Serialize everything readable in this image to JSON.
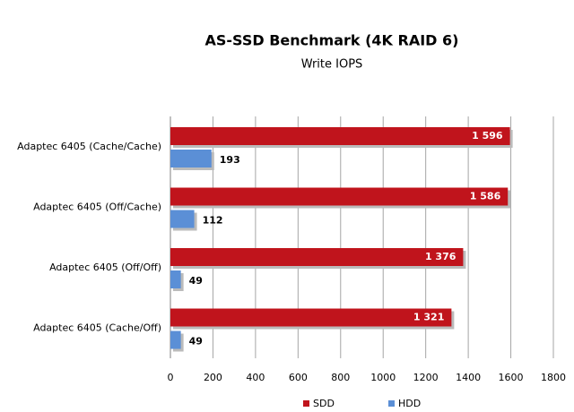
{
  "chart_data": {
    "type": "hbar",
    "title": "AS-SSD Benchmark (4K RAID 6)",
    "subtitle": "Write IOPS",
    "categories": [
      "Adaptec 6405 (Cache/Cache)",
      "Adaptec 6405 (Off/Cache)",
      "Adaptec 6405 (Off/Off)",
      "Adaptec 6405 (Cache/Off)"
    ],
    "series": [
      {
        "name": "SDD",
        "color": "#c0141c",
        "values": [
          1596,
          1586,
          1376,
          1321
        ],
        "value_labels": [
          "1 596",
          "1 586",
          "1 376",
          "1 321"
        ]
      },
      {
        "name": "HDD",
        "color": "#5b8fd6",
        "values": [
          193,
          112,
          49,
          49
        ]
      }
    ],
    "xlim": [
      0,
      1800
    ],
    "xticks": [
      0,
      200,
      400,
      600,
      800,
      1000,
      1200,
      1400,
      1600,
      1800
    ],
    "grid": true,
    "legend": "bottom"
  }
}
